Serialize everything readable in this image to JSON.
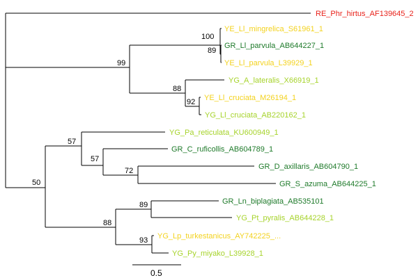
{
  "tree": {
    "leaves": [
      {
        "id": "RE_Phr_hirtus_AF139645_2",
        "label": "RE_Phr_hirtus_AF139645_2",
        "color": "#e8221a"
      },
      {
        "id": "YE_Ll_mingrelica_S61961_1",
        "label": "YE_Ll_mingrelica_S61961_1",
        "color": "#f3d21e"
      },
      {
        "id": "GR_Ll_parvula_AB644227_1",
        "label": "GR_Ll_parvula_AB644227_1",
        "color": "#1e7a2a"
      },
      {
        "id": "YE_Ll_parvula_L39929_1",
        "label": "YE_Ll_parvula_L39929_1",
        "color": "#f3d21e"
      },
      {
        "id": "YG_A_lateralis_X66919_1",
        "label": "YG_A_lateralis_X66919_1",
        "color": "#a6d32b"
      },
      {
        "id": "YE_Ll_cruciata_M26194_1",
        "label": "YE_Ll_cruciata_M26194_1",
        "color": "#f3d21e"
      },
      {
        "id": "YG_Ll_cruciata_AB220162_1",
        "label": "YG_Ll_cruciata_AB220162_1",
        "color": "#a6d32b"
      },
      {
        "id": "YG_Pa_reticulata_KU600949_1",
        "label": "YG_Pa_reticulata_KU600949_1",
        "color": "#a6d32b"
      },
      {
        "id": "GR_C_ruficollis_AB604789_1",
        "label": "GR_C_ruficollis_AB604789_1",
        "color": "#1e7a2a"
      },
      {
        "id": "GR_D_axillaris_AB604790_1",
        "label": "GR_D_axillaris_AB604790_1",
        "color": "#1e7a2a"
      },
      {
        "id": "GR_S_azuma_AB644225_1",
        "label": "GR_S_azuma_AB644225_1",
        "color": "#1e7a2a"
      },
      {
        "id": "GR_Ln_biplagiata_AB535101",
        "label": "GR_Ln_biplagiata_AB535101",
        "color": "#1e7a2a"
      },
      {
        "id": "YG_Pt_pyralis_AB644228_1",
        "label": "YG_Pt_pyralis_AB644228_1",
        "color": "#a6d32b"
      },
      {
        "id": "YG_Lp_turkestanicus_AY742225_...",
        "label": "YG_Lp_turkestanicus_AY742225_...",
        "color": "#f3d21e"
      },
      {
        "id": "YG_Py_miyako_L39928_1",
        "label": "YG_Py_miyako_L39928_1",
        "color": "#a6d32b"
      }
    ],
    "support_values": [
      {
        "node": "n100",
        "value": "100"
      },
      {
        "node": "n89a",
        "value": "89"
      },
      {
        "node": "n99",
        "value": "99"
      },
      {
        "node": "n88a",
        "value": "88"
      },
      {
        "node": "n92",
        "value": "92"
      },
      {
        "node": "n57a",
        "value": "57"
      },
      {
        "node": "n57b",
        "value": "57"
      },
      {
        "node": "n72",
        "value": "72"
      },
      {
        "node": "n50",
        "value": "50"
      },
      {
        "node": "n89b",
        "value": "89"
      },
      {
        "node": "n88b",
        "value": "88"
      },
      {
        "node": "n93",
        "value": "93"
      }
    ],
    "scale_bar": {
      "value": 0.5,
      "label": "0.5"
    }
  }
}
